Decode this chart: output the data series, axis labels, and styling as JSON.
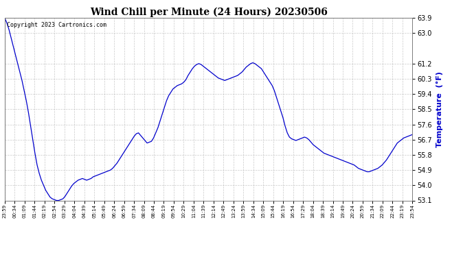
{
  "title": "Wind Chill per Minute (24 Hours) 20230506",
  "ylabel": "Temperature  (°F)",
  "copyright": "Copyright 2023 Cartronics.com",
  "line_color": "#0000cc",
  "ylabel_color": "#0000cc",
  "background_color": "#ffffff",
  "grid_color": "#bbbbbb",
  "ylim": [
    53.1,
    63.9
  ],
  "yticks": [
    53.1,
    54.0,
    54.9,
    55.8,
    56.7,
    57.6,
    58.5,
    59.4,
    60.3,
    61.2,
    63.0,
    63.9
  ],
  "xtick_labels": [
    "23:59",
    "00:34",
    "01:09",
    "01:44",
    "02:19",
    "02:54",
    "03:29",
    "04:04",
    "04:39",
    "05:14",
    "05:49",
    "06:24",
    "06:59",
    "07:34",
    "08:09",
    "08:44",
    "09:19",
    "09:54",
    "10:29",
    "11:04",
    "11:39",
    "12:14",
    "12:49",
    "13:24",
    "13:59",
    "14:34",
    "15:09",
    "15:44",
    "16:19",
    "16:54",
    "17:29",
    "18:04",
    "18:39",
    "19:14",
    "19:49",
    "20:24",
    "20:59",
    "21:34",
    "22:09",
    "22:44",
    "23:19",
    "23:54"
  ],
  "data_points": [
    63.9,
    63.6,
    63.2,
    62.7,
    62.2,
    61.7,
    61.2,
    60.7,
    60.2,
    59.6,
    59.0,
    58.3,
    57.5,
    56.7,
    55.9,
    55.2,
    54.7,
    54.3,
    54.0,
    53.7,
    53.5,
    53.3,
    53.2,
    53.15,
    53.1,
    53.1,
    53.15,
    53.2,
    53.35,
    53.55,
    53.75,
    53.95,
    54.1,
    54.2,
    54.3,
    54.35,
    54.4,
    54.35,
    54.3,
    54.35,
    54.4,
    54.5,
    54.55,
    54.6,
    54.65,
    54.7,
    54.75,
    54.8,
    54.85,
    54.9,
    55.0,
    55.15,
    55.3,
    55.5,
    55.7,
    55.9,
    56.1,
    56.3,
    56.5,
    56.7,
    56.9,
    57.05,
    57.1,
    56.95,
    56.8,
    56.65,
    56.5,
    56.55,
    56.6,
    56.8,
    57.1,
    57.4,
    57.8,
    58.2,
    58.6,
    59.0,
    59.3,
    59.5,
    59.7,
    59.8,
    59.9,
    59.95,
    60.0,
    60.1,
    60.25,
    60.5,
    60.7,
    60.9,
    61.05,
    61.15,
    61.2,
    61.15,
    61.05,
    60.95,
    60.85,
    60.75,
    60.65,
    60.55,
    60.45,
    60.35,
    60.3,
    60.25,
    60.2,
    60.25,
    60.3,
    60.35,
    60.4,
    60.45,
    60.5,
    60.6,
    60.7,
    60.85,
    61.0,
    61.1,
    61.2,
    61.25,
    61.2,
    61.1,
    61.0,
    60.9,
    60.7,
    60.5,
    60.3,
    60.1,
    59.9,
    59.6,
    59.2,
    58.8,
    58.4,
    58.0,
    57.5,
    57.1,
    56.85,
    56.75,
    56.7,
    56.65,
    56.7,
    56.75,
    56.8,
    56.85,
    56.8,
    56.7,
    56.55,
    56.4,
    56.3,
    56.2,
    56.1,
    56.0,
    55.9,
    55.85,
    55.8,
    55.75,
    55.7,
    55.65,
    55.6,
    55.55,
    55.5,
    55.45,
    55.4,
    55.35,
    55.3,
    55.25,
    55.2,
    55.1,
    55.0,
    54.95,
    54.9,
    54.85,
    54.8,
    54.8,
    54.85,
    54.9,
    54.95,
    55.0,
    55.1,
    55.2,
    55.35,
    55.5,
    55.7,
    55.9,
    56.1,
    56.3,
    56.5,
    56.6,
    56.7,
    56.8,
    56.85,
    56.9,
    56.95,
    57.0
  ]
}
